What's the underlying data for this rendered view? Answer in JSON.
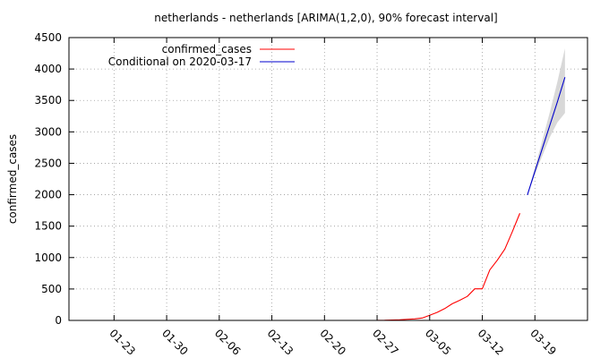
{
  "chart_data": {
    "type": "line",
    "title": "netherlands - netherlands [ARIMA(1,2,0), 90% forecast interval]",
    "ylabel": "confirmed_cases",
    "xlabel": "",
    "ylim": [
      0,
      4500
    ],
    "xlim": [
      "2020-01-17",
      "2020-03-26"
    ],
    "grid": true,
    "legend_position": "top-left",
    "y_ticks": [
      0,
      500,
      1000,
      1500,
      2000,
      2500,
      3000,
      3500,
      4000,
      4500
    ],
    "x_ticks": [
      {
        "date": "2020-01-23",
        "label": "01-23"
      },
      {
        "date": "2020-01-30",
        "label": "01-30"
      },
      {
        "date": "2020-02-06",
        "label": "02-06"
      },
      {
        "date": "2020-02-13",
        "label": "02-13"
      },
      {
        "date": "2020-02-20",
        "label": "02-20"
      },
      {
        "date": "2020-02-27",
        "label": "02-27"
      },
      {
        "date": "2020-03-05",
        "label": "03-05"
      },
      {
        "date": "2020-03-12",
        "label": "03-12"
      },
      {
        "date": "2020-03-19",
        "label": "03-19"
      }
    ],
    "series": [
      {
        "name": "confirmed_cases",
        "color": "#ff0000",
        "points": [
          {
            "x": "2020-02-27",
            "y": 1
          },
          {
            "x": "2020-02-28",
            "y": 2
          },
          {
            "x": "2020-02-29",
            "y": 7
          },
          {
            "x": "2020-03-01",
            "y": 10
          },
          {
            "x": "2020-03-02",
            "y": 18
          },
          {
            "x": "2020-03-03",
            "y": 24
          },
          {
            "x": "2020-03-04",
            "y": 38
          },
          {
            "x": "2020-03-05",
            "y": 82
          },
          {
            "x": "2020-03-06",
            "y": 128
          },
          {
            "x": "2020-03-07",
            "y": 188
          },
          {
            "x": "2020-03-08",
            "y": 265
          },
          {
            "x": "2020-03-09",
            "y": 321
          },
          {
            "x": "2020-03-10",
            "y": 382
          },
          {
            "x": "2020-03-11",
            "y": 503
          },
          {
            "x": "2020-03-12",
            "y": 503
          },
          {
            "x": "2020-03-13",
            "y": 804
          },
          {
            "x": "2020-03-14",
            "y": 959
          },
          {
            "x": "2020-03-15",
            "y": 1135
          },
          {
            "x": "2020-03-16",
            "y": 1413
          },
          {
            "x": "2020-03-17",
            "y": 1705
          }
        ]
      },
      {
        "name": "Conditional on 2020-03-17",
        "color": "#0000cc",
        "points": [
          {
            "x": "2020-03-18",
            "y": 1996
          },
          {
            "x": "2020-03-19",
            "y": 2370
          },
          {
            "x": "2020-03-20",
            "y": 2740
          },
          {
            "x": "2020-03-21",
            "y": 3110
          },
          {
            "x": "2020-03-22",
            "y": 3480
          },
          {
            "x": "2020-03-23",
            "y": 3870
          }
        ]
      }
    ],
    "forecast_interval": {
      "color": "#d8d8d8",
      "points": [
        {
          "x": "2020-03-18",
          "lower": 1990,
          "upper": 2005
        },
        {
          "x": "2020-03-19",
          "lower": 2320,
          "upper": 2430
        },
        {
          "x": "2020-03-20",
          "lower": 2620,
          "upper": 2870
        },
        {
          "x": "2020-03-21",
          "lower": 2920,
          "upper": 3320
        },
        {
          "x": "2020-03-22",
          "lower": 3150,
          "upper": 3800
        },
        {
          "x": "2020-03-23",
          "lower": 3300,
          "upper": 4330
        }
      ]
    }
  }
}
